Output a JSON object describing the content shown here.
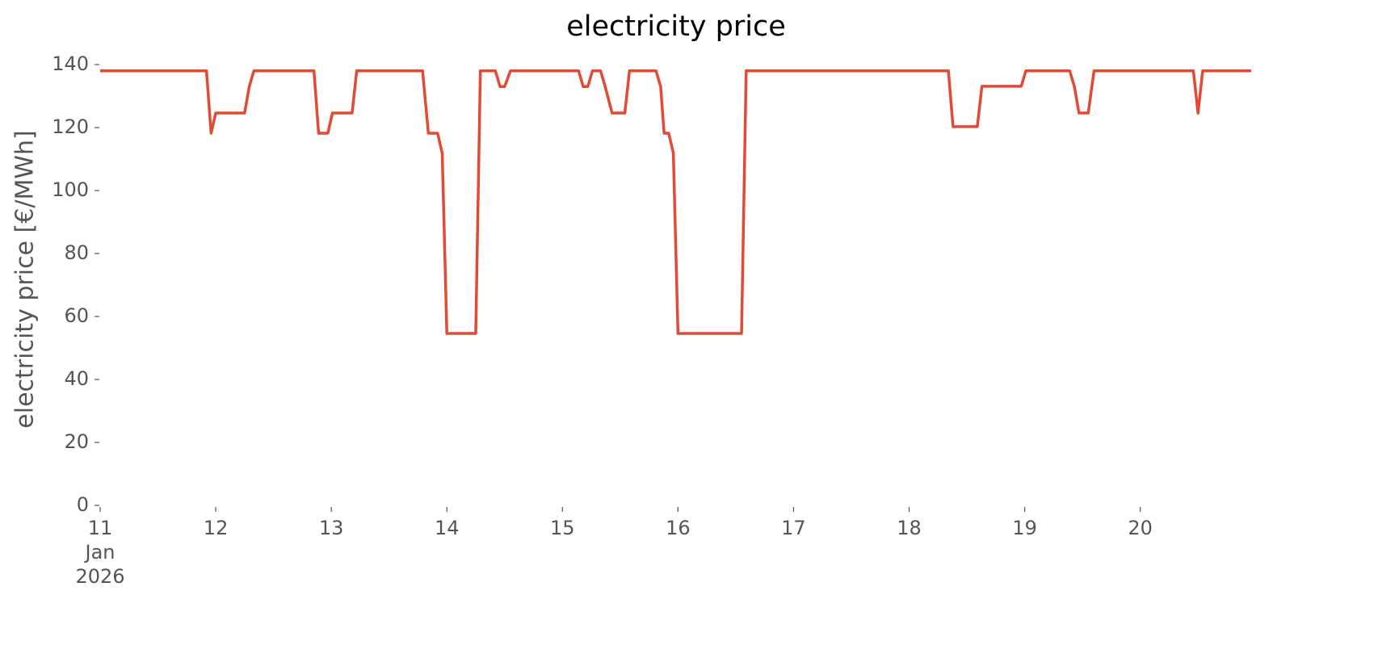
{
  "chart_data": {
    "type": "line",
    "title": "electricity price",
    "y_label": "electricity price [€/MWh]",
    "series": [
      {
        "name": "electricity price",
        "color": "#e24a33",
        "x": [
          11.0,
          11.92,
          11.96,
          12.0,
          12.25,
          12.29,
          12.33,
          12.85,
          12.89,
          12.97,
          13.01,
          13.18,
          13.22,
          13.79,
          13.84,
          13.92,
          13.96,
          14.0,
          14.25,
          14.29,
          14.42,
          14.46,
          14.5,
          14.55,
          15.14,
          15.18,
          15.22,
          15.26,
          15.33,
          15.37,
          15.43,
          15.54,
          15.58,
          15.81,
          15.85,
          15.88,
          15.92,
          15.96,
          16.0,
          16.55,
          16.59,
          18.34,
          18.38,
          18.59,
          18.63,
          18.97,
          19.01,
          19.39,
          19.43,
          19.47,
          19.55,
          19.6,
          20.46,
          20.5,
          20.54,
          20.96
        ],
        "values": [
          138,
          138,
          118.2,
          124.6,
          124.6,
          133,
          138,
          138,
          118.2,
          118.2,
          124.6,
          124.6,
          138,
          138,
          118.2,
          118.2,
          111.8,
          54.6,
          54.6,
          138,
          138,
          133,
          133,
          138,
          138,
          133,
          133,
          138,
          138,
          133,
          124.6,
          124.6,
          138,
          138,
          133,
          118.2,
          118.2,
          111.8,
          54.6,
          54.6,
          138,
          138,
          120.3,
          120.3,
          133.1,
          133.1,
          138,
          138,
          133,
          124.6,
          124.6,
          138,
          138,
          124.6,
          138,
          138
        ]
      }
    ],
    "xlim": [
      11,
      20.96
    ],
    "xticks": [
      {
        "value": 11,
        "label": "11\nJan\n2026"
      },
      12,
      13,
      14,
      15,
      16,
      17,
      18,
      19,
      20
    ],
    "ylim": [
      0,
      140
    ],
    "yticks": [
      0,
      20,
      40,
      60,
      80,
      100,
      120,
      140
    ]
  }
}
